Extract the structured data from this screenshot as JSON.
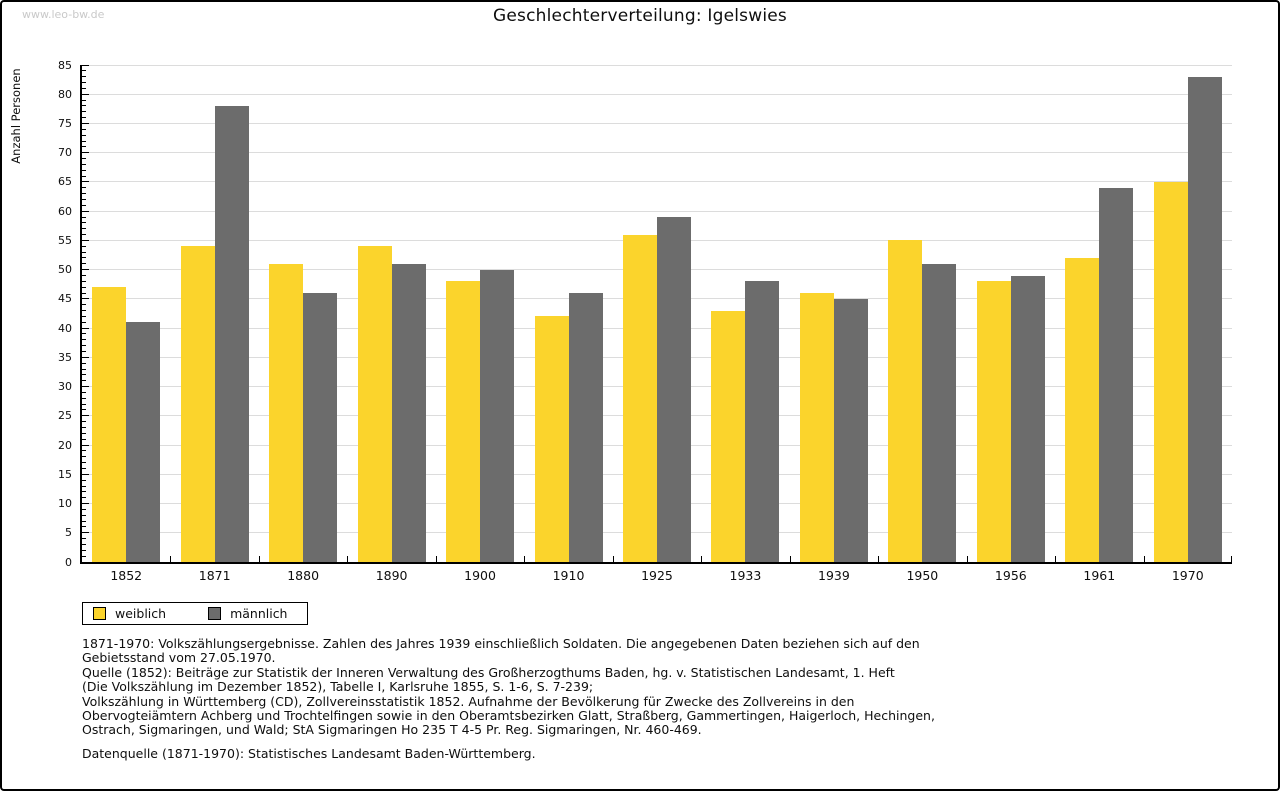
{
  "watermark": "www.leo-bw.de",
  "header": {
    "title": "Geschlechterverteilung: Igelswies"
  },
  "chart_data": {
    "type": "bar",
    "title": "Geschlechterverteilung: Igelswies",
    "xlabel": "",
    "ylabel": "Anzahl Personen",
    "ylim": [
      0,
      85
    ],
    "yticks": [
      0,
      5,
      10,
      15,
      20,
      25,
      30,
      35,
      40,
      45,
      50,
      55,
      60,
      65,
      70,
      75,
      80,
      85
    ],
    "ytick_minor_step": 1,
    "grid": true,
    "legend_position": "bottom-left",
    "categories": [
      "1852",
      "1871",
      "1880",
      "1890",
      "1900",
      "1910",
      "1925",
      "1933",
      "1939",
      "1950",
      "1956",
      "1961",
      "1970"
    ],
    "series": [
      {
        "name": "weiblich",
        "color": "#fbd42c",
        "values": [
          47,
          54,
          51,
          54,
          48,
          42,
          56,
          43,
          46,
          55,
          48,
          52,
          65
        ]
      },
      {
        "name": "männlich",
        "color": "#6c6c6c",
        "values": [
          41,
          78,
          46,
          51,
          50,
          46,
          59,
          48,
          45,
          51,
          49,
          64,
          83
        ]
      }
    ]
  },
  "legend": {
    "items": [
      {
        "label": "weiblich",
        "color": "#fbd42c"
      },
      {
        "label": "männlich",
        "color": "#6c6c6c"
      }
    ]
  },
  "footnotes": {
    "lines": [
      "1871-1970: Volkszählungsergebnisse. Zahlen des Jahres 1939 einschließlich Soldaten. Die angegebenen Daten beziehen sich auf den",
      "Gebietsstand vom 27.05.1970.",
      "Quelle (1852): Beiträge zur Statistik der Inneren Verwaltung des Großherzogthums Baden, hg. v. Statistischen Landesamt, 1. Heft",
      "(Die Volkszählung im Dezember 1852), Tabelle I, Karlsruhe 1855, S. 1-6, S. 7-239;",
      "Volkszählung in Württemberg (CD), Zollvereinsstatistik 1852. Aufnahme der Bevölkerung für Zwecke des Zollvereins in den",
      "Obervogteiämtern Achberg und Trochtelfingen sowie in den Oberamtsbezirken Glatt, Straßberg, Gammertingen, Haigerloch, Hechingen,",
      "Ostrach, Sigmaringen, und Wald; StA Sigmaringen Ho 235 T 4-5 Pr. Reg. Sigmaringen, Nr. 460-469."
    ],
    "datasource": "Datenquelle (1871-1970): Statistisches Landesamt Baden-Württemberg."
  },
  "colors": {
    "grid": "#dcdcdc",
    "axis": "#000000",
    "watermark": "#c9c9c9"
  }
}
